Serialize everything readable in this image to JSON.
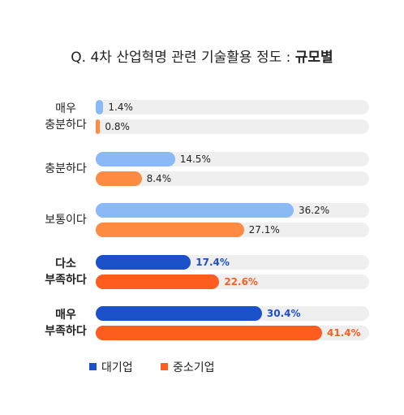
{
  "chart_data": {
    "type": "hbar",
    "title": "Q. 4차 산업혁명 관련 기술활용 정도 :",
    "title_bold": "규모별",
    "categories": [
      "매우\n충분하다",
      "충분하다",
      "보통이다",
      "다소\n부족하다",
      "매우\n부족하다"
    ],
    "highlight": [
      false,
      false,
      false,
      true,
      true
    ],
    "xlim": [
      0,
      50
    ],
    "series": [
      {
        "name": "대기업",
        "color": "#1a50c8",
        "colors": [
          "#8bb9f5",
          "#8bb9f5",
          "#8bb9f5",
          "#1a50c8",
          "#1a50c8"
        ],
        "values": [
          1.4,
          14.5,
          36.2,
          17.4,
          30.4
        ],
        "value_labels": [
          "1.4%",
          "14.5%",
          "36.2%",
          "17.4%",
          "30.4%"
        ]
      },
      {
        "name": "중소기업",
        "color": "#ff5c1f",
        "colors": [
          "#ff8b42",
          "#ff8b42",
          "#ff8b42",
          "#ff5c1f",
          "#ff5c1f"
        ],
        "values": [
          0.8,
          8.4,
          27.1,
          22.6,
          41.4
        ],
        "value_labels": [
          "0.8%",
          "8.4%",
          "27.1%",
          "22.6%",
          "41.4%"
        ]
      }
    ]
  }
}
